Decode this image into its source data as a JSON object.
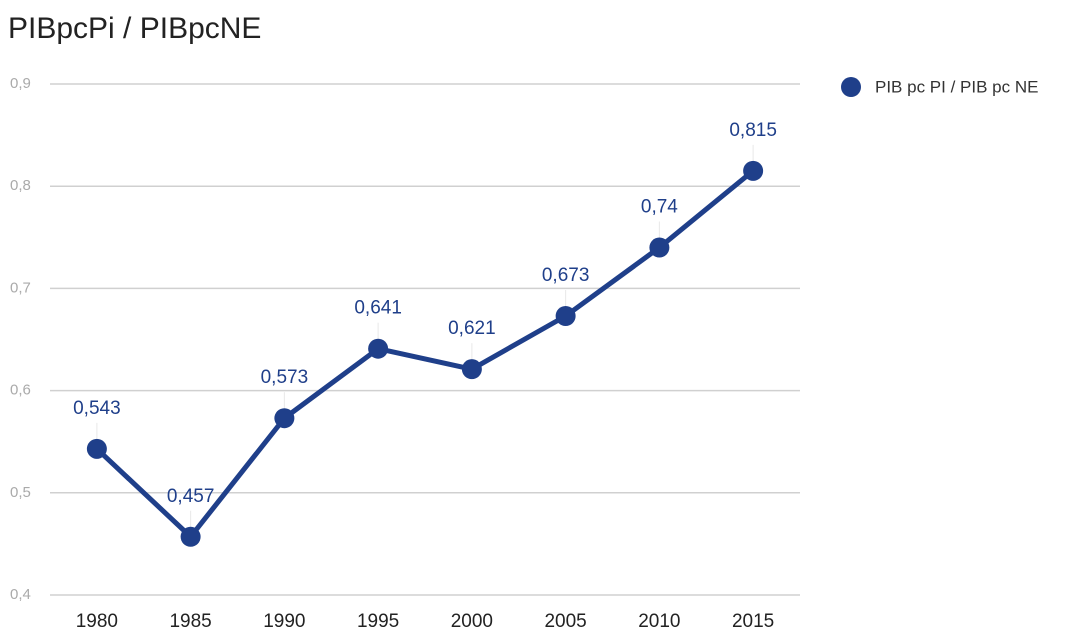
{
  "chart_data": {
    "type": "line",
    "title": "PIBpcPi / PIBpcNE",
    "categories": [
      "1980",
      "1985",
      "1990",
      "1995",
      "2000",
      "2005",
      "2010",
      "2015"
    ],
    "series": [
      {
        "name": "PIB pc PI / PIB pc NE",
        "color": "#1f3f8a",
        "values": [
          0.543,
          0.457,
          0.573,
          0.641,
          0.621,
          0.673,
          0.74,
          0.815
        ],
        "value_labels": [
          "0,543",
          "0,457",
          "0,573",
          "0,641",
          "0,621",
          "0,673",
          "0,74",
          "0,815"
        ]
      }
    ],
    "ylim": [
      0.4,
      0.9
    ],
    "yticks": [
      {
        "value": 0.4,
        "label": "0,4"
      },
      {
        "value": 0.5,
        "label": "0,5"
      },
      {
        "value": 0.6,
        "label": "0,6"
      },
      {
        "value": 0.7,
        "label": "0,7"
      },
      {
        "value": 0.8,
        "label": "0,8"
      },
      {
        "value": 0.9,
        "label": "0,9"
      }
    ],
    "grid": true,
    "legend": "right"
  }
}
